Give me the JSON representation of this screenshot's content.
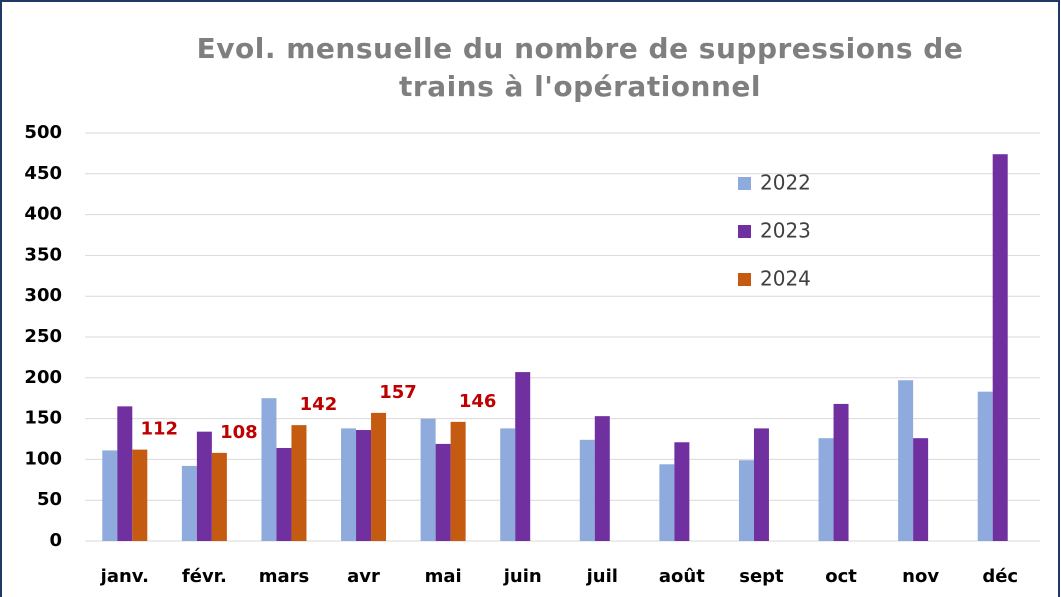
{
  "chart_data": {
    "type": "bar",
    "title": "Evol. mensuelle du nombre de suppressions de trains à l'opérationnel",
    "categories": [
      "janv.",
      "févr.",
      "mars",
      "avr",
      "mai",
      "juin",
      "juil",
      "août",
      "sept",
      "oct",
      "nov",
      "déc"
    ],
    "series": [
      {
        "name": "2022",
        "color": "#8faadc",
        "values": [
          111,
          92,
          175,
          138,
          150,
          138,
          124,
          94,
          99,
          126,
          197,
          183
        ]
      },
      {
        "name": "2023",
        "color": "#7030a0",
        "values": [
          165,
          134,
          114,
          136,
          119,
          207,
          153,
          121,
          138,
          168,
          126,
          474
        ],
        "value_color": "#c00000"
      },
      {
        "name": "2024",
        "color": "#c55a11",
        "values": [
          112,
          108,
          142,
          157,
          146,
          null,
          null,
          null,
          null,
          null,
          null,
          null
        ],
        "labels": true
      }
    ],
    "ylim": [
      0,
      500
    ],
    "yticks": [
      0,
      50,
      100,
      150,
      200,
      250,
      300,
      350,
      400,
      450,
      500
    ],
    "grid": true,
    "legend": "upper right"
  }
}
